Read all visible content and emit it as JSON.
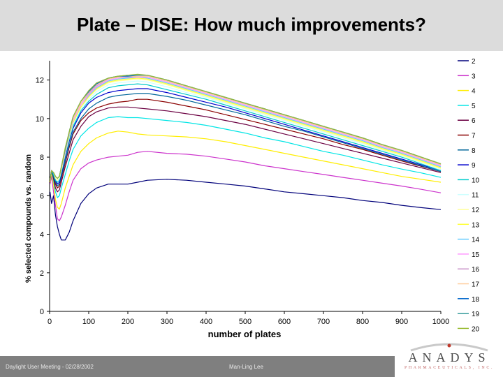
{
  "slide": {
    "title": "Plate – DISE: How much improvements?",
    "footer_left": "Daylight User Meeting - 02/28/2002",
    "footer_center": "Man-Ling Lee"
  },
  "logo": {
    "word": "ANADYS",
    "sub": "PHARMACEUTICALS, INC."
  },
  "chart_data": {
    "type": "line",
    "title": "",
    "xlabel": "number of plates",
    "ylabel": "% selected compounds vs. random",
    "xlim": [
      0,
      1000
    ],
    "ylim": [
      0,
      13
    ],
    "x_ticks": [
      0,
      100,
      200,
      300,
      400,
      500,
      600,
      700,
      800,
      900,
      1000
    ],
    "y_ticks": [
      0,
      2,
      4,
      6,
      8,
      10,
      12
    ],
    "grid": false,
    "legend_position": "right",
    "x": [
      1,
      5,
      10,
      15,
      20,
      25,
      30,
      40,
      50,
      60,
      80,
      100,
      120,
      150,
      175,
      200,
      225,
      250,
      300,
      350,
      400,
      450,
      500,
      550,
      600,
      650,
      700,
      750,
      800,
      850,
      900,
      950,
      1000
    ],
    "series": [
      {
        "name": "2",
        "color": "#00007a",
        "values": [
          6.2,
          5.6,
          6.0,
          5.0,
          4.4,
          4.0,
          3.7,
          3.7,
          4.1,
          4.7,
          5.6,
          6.1,
          6.4,
          6.6,
          6.6,
          6.6,
          6.7,
          6.8,
          6.85,
          6.8,
          6.7,
          6.6,
          6.5,
          6.35,
          6.2,
          6.1,
          6.0,
          5.9,
          5.75,
          5.65,
          5.5,
          5.38,
          5.28
        ]
      },
      {
        "name": "3",
        "color": "#cc33cc",
        "values": [
          6.6,
          7.0,
          6.2,
          5.5,
          4.8,
          4.7,
          4.9,
          5.5,
          6.2,
          6.8,
          7.4,
          7.7,
          7.85,
          8.0,
          8.05,
          8.1,
          8.25,
          8.3,
          8.2,
          8.15,
          8.05,
          7.9,
          7.75,
          7.55,
          7.4,
          7.25,
          7.1,
          6.95,
          6.8,
          6.65,
          6.5,
          6.33,
          6.15
        ]
      },
      {
        "name": "4",
        "color": "#ffee00",
        "values": [
          6.7,
          7.2,
          6.6,
          5.8,
          5.4,
          5.3,
          5.6,
          6.4,
          7.0,
          7.6,
          8.3,
          8.7,
          9.0,
          9.25,
          9.35,
          9.3,
          9.2,
          9.15,
          9.1,
          9.05,
          8.95,
          8.8,
          8.6,
          8.4,
          8.2,
          8.0,
          7.8,
          7.6,
          7.4,
          7.2,
          7.0,
          6.85,
          6.7
        ]
      },
      {
        "name": "5",
        "color": "#00e5e5",
        "values": [
          6.8,
          7.3,
          6.8,
          6.2,
          5.9,
          6.0,
          6.4,
          7.1,
          7.8,
          8.4,
          9.1,
          9.5,
          9.8,
          10.05,
          10.1,
          10.05,
          10.05,
          10.0,
          9.9,
          9.8,
          9.65,
          9.45,
          9.25,
          9.0,
          8.8,
          8.55,
          8.3,
          8.1,
          7.85,
          7.6,
          7.38,
          7.18,
          6.95
        ]
      },
      {
        "name": "6",
        "color": "#6b0042",
        "values": [
          6.8,
          7.3,
          6.9,
          6.4,
          6.2,
          6.3,
          6.7,
          7.5,
          8.2,
          8.9,
          9.6,
          10.1,
          10.35,
          10.55,
          10.6,
          10.6,
          10.55,
          10.5,
          10.4,
          10.25,
          10.1,
          9.9,
          9.7,
          9.45,
          9.2,
          8.95,
          8.7,
          8.45,
          8.2,
          7.95,
          7.7,
          7.45,
          7.2
        ]
      },
      {
        "name": "7",
        "color": "#8a0000",
        "values": [
          6.8,
          7.3,
          7.0,
          6.6,
          6.4,
          6.5,
          6.9,
          7.7,
          8.5,
          9.2,
          9.9,
          10.3,
          10.55,
          10.75,
          10.85,
          10.9,
          11.0,
          11.0,
          10.85,
          10.65,
          10.45,
          10.2,
          9.95,
          9.7,
          9.45,
          9.2,
          8.95,
          8.65,
          8.4,
          8.1,
          7.8,
          7.52,
          7.25
        ]
      },
      {
        "name": "8",
        "color": "#006699",
        "values": [
          6.8,
          7.3,
          7.0,
          6.7,
          6.5,
          6.6,
          7.0,
          7.8,
          8.6,
          9.3,
          10.0,
          10.5,
          10.8,
          11.1,
          11.2,
          11.25,
          11.3,
          11.3,
          11.15,
          10.95,
          10.7,
          10.45,
          10.2,
          9.9,
          9.6,
          9.35,
          9.05,
          8.75,
          8.45,
          8.15,
          7.85,
          7.55,
          7.25
        ]
      },
      {
        "name": "9",
        "color": "#0000cc",
        "values": [
          6.8,
          7.3,
          7.1,
          6.8,
          6.6,
          6.7,
          7.1,
          8.0,
          8.8,
          9.5,
          10.3,
          10.8,
          11.1,
          11.35,
          11.45,
          11.5,
          11.55,
          11.55,
          11.35,
          11.1,
          10.85,
          10.6,
          10.3,
          10.0,
          9.7,
          9.4,
          9.1,
          8.8,
          8.5,
          8.2,
          7.9,
          7.6,
          7.3
        ]
      },
      {
        "name": "10",
        "color": "#00cccc",
        "values": [
          6.8,
          7.3,
          7.1,
          6.8,
          6.7,
          6.8,
          7.2,
          8.1,
          8.9,
          9.6,
          10.4,
          10.9,
          11.25,
          11.6,
          11.7,
          11.75,
          11.8,
          11.75,
          11.5,
          11.25,
          11.0,
          10.7,
          10.4,
          10.1,
          9.8,
          9.5,
          9.2,
          8.9,
          8.6,
          8.3,
          8.0,
          7.65,
          7.3
        ]
      },
      {
        "name": "11",
        "color": "#ccffff",
        "values": [
          6.8,
          7.3,
          7.2,
          6.9,
          6.8,
          6.9,
          7.3,
          8.2,
          9.0,
          9.7,
          10.5,
          11.0,
          11.4,
          11.75,
          11.85,
          11.9,
          11.95,
          11.9,
          11.65,
          11.35,
          11.1,
          10.8,
          10.5,
          10.2,
          9.9,
          9.6,
          9.3,
          9.0,
          8.7,
          8.35,
          8.05,
          7.7,
          7.35
        ]
      },
      {
        "name": "12",
        "color": "#ffff99",
        "values": [
          6.8,
          7.3,
          7.2,
          6.9,
          6.8,
          6.9,
          7.3,
          8.2,
          9.0,
          9.8,
          10.6,
          11.1,
          11.5,
          11.85,
          11.95,
          12.0,
          12.05,
          12.0,
          11.75,
          11.45,
          11.15,
          10.85,
          10.55,
          10.25,
          9.95,
          9.65,
          9.35,
          9.05,
          8.75,
          8.4,
          8.1,
          7.75,
          7.4
        ]
      },
      {
        "name": "13",
        "color": "#ffff33",
        "values": [
          6.8,
          7.3,
          7.2,
          7.0,
          6.9,
          7.0,
          7.4,
          8.3,
          9.1,
          9.8,
          10.6,
          11.15,
          11.55,
          11.9,
          12.0,
          12.05,
          12.1,
          12.05,
          11.8,
          11.5,
          11.2,
          10.9,
          10.6,
          10.3,
          10.0,
          9.7,
          9.4,
          9.1,
          8.8,
          8.45,
          8.15,
          7.8,
          7.45
        ]
      },
      {
        "name": "14",
        "color": "#66ccff",
        "values": [
          6.8,
          7.3,
          7.2,
          7.0,
          6.9,
          7.0,
          7.4,
          8.3,
          9.1,
          9.9,
          10.7,
          11.2,
          11.6,
          11.95,
          12.05,
          12.1,
          12.15,
          12.1,
          11.85,
          11.55,
          11.25,
          10.95,
          10.65,
          10.35,
          10.05,
          9.75,
          9.45,
          9.15,
          8.85,
          8.5,
          8.2,
          7.85,
          7.5
        ]
      },
      {
        "name": "15",
        "color": "#ff99ff",
        "values": [
          6.8,
          7.3,
          7.2,
          7.0,
          6.9,
          7.0,
          7.4,
          8.3,
          9.2,
          9.9,
          10.7,
          11.25,
          11.65,
          12.0,
          12.1,
          12.15,
          12.15,
          12.15,
          11.9,
          11.6,
          11.3,
          11.0,
          10.7,
          10.4,
          10.1,
          9.8,
          9.5,
          9.2,
          8.9,
          8.55,
          8.25,
          7.9,
          7.55
        ]
      },
      {
        "name": "16",
        "color": "#cc99cc",
        "values": [
          6.8,
          7.3,
          7.2,
          7.0,
          6.9,
          7.0,
          7.4,
          8.4,
          9.2,
          10.0,
          10.8,
          11.3,
          11.7,
          12.05,
          12.15,
          12.15,
          12.2,
          12.2,
          11.95,
          11.65,
          11.35,
          11.05,
          10.75,
          10.45,
          10.15,
          9.85,
          9.55,
          9.25,
          8.95,
          8.6,
          8.3,
          7.95,
          7.6
        ]
      },
      {
        "name": "17",
        "color": "#ffcc99",
        "values": [
          6.8,
          7.3,
          7.2,
          7.0,
          6.9,
          7.0,
          7.4,
          8.4,
          9.2,
          10.0,
          10.8,
          11.35,
          11.75,
          12.05,
          12.15,
          12.2,
          12.2,
          12.2,
          11.95,
          11.65,
          11.35,
          11.05,
          10.75,
          10.45,
          10.15,
          9.85,
          9.55,
          9.25,
          8.95,
          8.6,
          8.3,
          7.95,
          7.6
        ]
      },
      {
        "name": "18",
        "color": "#0066cc",
        "values": [
          6.8,
          7.3,
          7.2,
          7.0,
          6.9,
          7.0,
          7.5,
          8.4,
          9.3,
          10.1,
          10.9,
          11.4,
          11.8,
          12.1,
          12.2,
          12.2,
          12.25,
          12.25,
          12.0,
          11.7,
          11.4,
          11.1,
          10.8,
          10.5,
          10.2,
          9.9,
          9.6,
          9.3,
          9.0,
          8.65,
          8.35,
          8.0,
          7.65
        ]
      },
      {
        "name": "19",
        "color": "#339999",
        "values": [
          6.8,
          7.3,
          7.2,
          7.0,
          6.9,
          7.0,
          7.5,
          8.4,
          9.3,
          10.1,
          10.9,
          11.45,
          11.85,
          12.1,
          12.2,
          12.25,
          12.25,
          12.25,
          12.0,
          11.7,
          11.4,
          11.1,
          10.8,
          10.5,
          10.2,
          9.9,
          9.6,
          9.3,
          9.0,
          8.65,
          8.35,
          8.0,
          7.65
        ]
      },
      {
        "name": "20",
        "color": "#99bb33",
        "values": [
          6.8,
          7.3,
          7.2,
          7.0,
          6.9,
          7.0,
          7.5,
          8.5,
          9.3,
          10.1,
          10.9,
          11.45,
          11.85,
          12.1,
          12.2,
          12.25,
          12.3,
          12.25,
          12.0,
          11.7,
          11.4,
          11.1,
          10.8,
          10.5,
          10.2,
          9.9,
          9.6,
          9.3,
          9.0,
          8.65,
          8.35,
          8.0,
          7.65
        ]
      }
    ]
  }
}
